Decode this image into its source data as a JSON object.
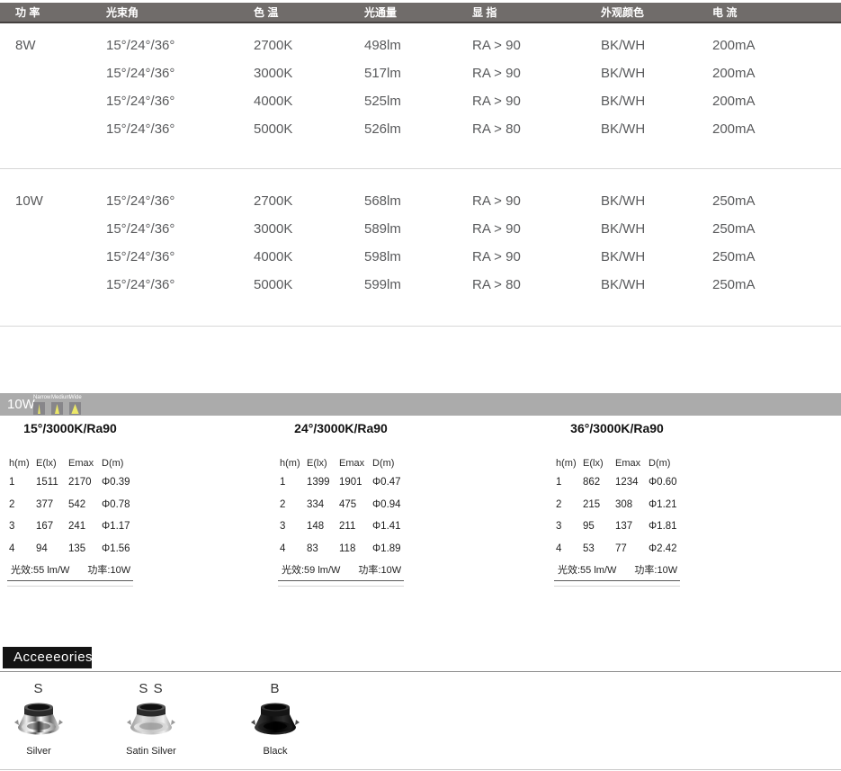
{
  "spec_table": {
    "headers": [
      "功 率",
      "光束角",
      "色 温",
      "光通量",
      "显 指",
      "外观颜色",
      "电 流"
    ],
    "groups": [
      {
        "power": "8W",
        "rows": [
          [
            "8W",
            "15°/24°/36°",
            "2700K",
            "498lm",
            "RA > 90",
            "BK/WH",
            "200mA"
          ],
          [
            "",
            "15°/24°/36°",
            "3000K",
            "517lm",
            "RA > 90",
            "BK/WH",
            "200mA"
          ],
          [
            "",
            "15°/24°/36°",
            "4000K",
            "525lm",
            "RA > 90",
            "BK/WH",
            "200mA"
          ],
          [
            "",
            "15°/24°/36°",
            "5000K",
            "526lm",
            "RA > 80",
            "BK/WH",
            "200mA"
          ]
        ]
      },
      {
        "power": "10W",
        "rows": [
          [
            "10W",
            "15°/24°/36°",
            "2700K",
            "568lm",
            "RA > 90",
            "BK/WH",
            "250mA"
          ],
          [
            "",
            "15°/24°/36°",
            "3000K",
            "589lm",
            "RA > 90",
            "BK/WH",
            "250mA"
          ],
          [
            "",
            "15°/24°/36°",
            "4000K",
            "598lm",
            "RA > 90",
            "BK/WH",
            "250mA"
          ],
          [
            "",
            "15°/24°/36°",
            "5000K",
            "599lm",
            "RA > 80",
            "BK/WH",
            "250mA"
          ]
        ]
      }
    ]
  },
  "photometrics": {
    "power_label": "10W",
    "beam_icons": [
      {
        "label": "Narrow"
      },
      {
        "label": "Medium"
      },
      {
        "label": "Wide"
      }
    ],
    "col_headers": [
      "h(m)",
      "E(lx)",
      "Emax",
      "D(m)"
    ],
    "tables": [
      {
        "title": "15°/3000K/Ra90",
        "rows": [
          [
            "1",
            "1511",
            "2170",
            "Φ0.39"
          ],
          [
            "2",
            "377",
            "542",
            "Φ0.78"
          ],
          [
            "3",
            "167",
            "241",
            "Φ1.17"
          ],
          [
            "4",
            "94",
            "135",
            "Φ1.56"
          ]
        ],
        "efficacy": "光效:55 lm/W",
        "power": "功率:10W"
      },
      {
        "title": "24°/3000K/Ra90",
        "rows": [
          [
            "1",
            "1399",
            "1901",
            "Φ0.47"
          ],
          [
            "2",
            "334",
            "475",
            "Φ0.94"
          ],
          [
            "3",
            "148",
            "211",
            "Φ1.41"
          ],
          [
            "4",
            "83",
            "118",
            "Φ1.89"
          ]
        ],
        "efficacy": "光效:59 lm/W",
        "power": "功率:10W"
      },
      {
        "title": "36°/3000K/Ra90",
        "rows": [
          [
            "1",
            "862",
            "1234",
            "Φ0.60"
          ],
          [
            "2",
            "215",
            "308",
            "Φ1.21"
          ],
          [
            "3",
            "95",
            "137",
            "Φ1.81"
          ],
          [
            "4",
            "53",
            "77",
            "Φ2.42"
          ]
        ],
        "efficacy": "光效:55 lm/W",
        "power": "功率:10W"
      }
    ]
  },
  "accessories": {
    "title": "Acceeeories",
    "items": [
      {
        "code": "S",
        "name": "Silver",
        "finish": "silver",
        "color": "#c0c0c0"
      },
      {
        "code": "S S",
        "name": "Satin Silver",
        "finish": "satin",
        "color": "#d6d6d6"
      },
      {
        "code": "B",
        "name": "Black",
        "finish": "black",
        "color": "#111111"
      }
    ]
  },
  "colors": {
    "header_bar": "#706c6a",
    "power_bar": "#ababab",
    "beam_yellow": "#ece868",
    "badge_bg": "#141414",
    "body_text": "#595a5c"
  }
}
